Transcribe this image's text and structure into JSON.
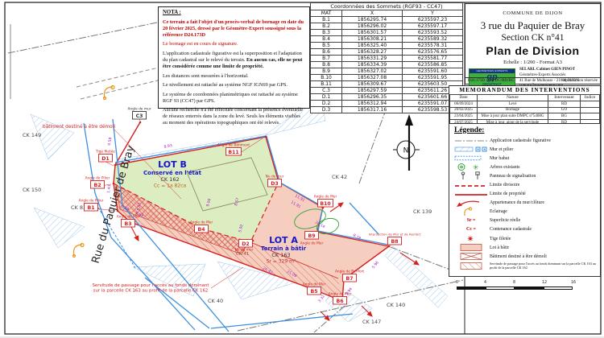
{
  "nota": {
    "title": "NOTA :",
    "p1": "Ce terrain a fait l'objet d'un procès-verbal de bornage en date du 20 février 2025, dressé par le Géomètre-Expert soussigné sous la référence D24.173D",
    "p2": "Le bornage est en cours de signature.",
    "p3a": "L'application cadastrale figurative est la superposition et l'adaptation du plan cadastral sur le relevé du terrain. ",
    "p3b": "En aucun cas, elle ne peut être considérée comme une limite de propriété.",
    "p4": "Les distances sont mesurées à l'horizontal.",
    "p5": "Le nivellement est rattaché au système NGF IGN69 par GPS.",
    "p6": "Le système de coordonnées planimétriques est rattaché au système RGF 93 (CC47) par GPS.",
    "p7": "Aucune recherche n'a été effectuée concernant la présence éventuelle de réseaux enterrés dans la zone du levé. Seuls les éléments visibles au moment des opérations topographiques ont été relevés."
  },
  "coords": {
    "title": "Coordonnées des Sommets (RGF93 - CC47)",
    "columns": [
      "MAT",
      "X",
      "Y"
    ],
    "rows": [
      {
        "mat": "B.1",
        "x": "1856295.74",
        "y": "6235597.23"
      },
      {
        "mat": "B.2",
        "x": "1856296.02",
        "y": "6235597.17"
      },
      {
        "mat": "B.3",
        "x": "1856301.57",
        "y": "6235593.52"
      },
      {
        "mat": "B.4",
        "x": "1856308.21",
        "y": "6235589.32"
      },
      {
        "mat": "B.5",
        "x": "1856325.40",
        "y": "6235578.31"
      },
      {
        "mat": "B.6",
        "x": "1856328.27",
        "y": "6235576.65"
      },
      {
        "mat": "B.7",
        "x": "1856331.29",
        "y": "6235581.77"
      },
      {
        "mat": "B.8",
        "x": "1856334.39",
        "y": "6235586.85"
      },
      {
        "mat": "B.9",
        "x": "1856327.02",
        "y": "6235591.60"
      },
      {
        "mat": "B.10",
        "x": "1856327.08",
        "y": "6235591.95"
      },
      {
        "mat": "B.11",
        "x": "1856309.67",
        "y": "6235603.50"
      },
      {
        "mat": "C.3",
        "x": "1856297.59",
        "y": "6235611.26"
      },
      {
        "mat": "D.1",
        "x": "1856296.35",
        "y": "6235601.66"
      },
      {
        "mat": "D.2",
        "x": "1856312.94",
        "y": "6235591.07"
      },
      {
        "mat": "D.3",
        "x": "1856317.16",
        "y": "6235598.53"
      }
    ]
  },
  "title_block": {
    "commune": "COMMUNE DE DIJON",
    "address": "3 rue du Paquier de Bray",
    "section": "Section CK n°41",
    "title": "Plan de Division",
    "scale": "Echelle : 1/200 - Format A3",
    "logo_top": "GEOMETRES EXPERTS",
    "logo_gp": "gp",
    "logo_sub": "GIEN/PINOT",
    "firm_name": "SELARL Cabinet GIEN PINOT",
    "firm_line2": "Géomètres-Experts Associés",
    "firm_line3": "41 Rue de Mulhouse - 21000  DIJON",
    "firm_line4": "contact@gp-geometre.com",
    "ref": "D24.173D - GO/DC/RD/BG",
    "reproduction": "reproduction réservée"
  },
  "memorandum": {
    "title": "MEMORANDUM  DES  INTERVENTIONS",
    "columns": [
      "Date",
      "Nature",
      "Intervenant",
      "Indice"
    ],
    "rows": [
      {
        "date": "06/09/2024",
        "nature": "Levé",
        "intervenant": "RD",
        "indice": ""
      },
      {
        "date": "20/02/2025",
        "nature": "Bornage",
        "intervenant": "GO",
        "indice": ""
      },
      {
        "date": "23/04/2025",
        "nature": "Mise à jour plan suite DMPC n°5408G",
        "intervenant": "BG",
        "indice": ""
      },
      {
        "date": "24/07/2025",
        "nature": "Mise à jour, ajout de la servitude",
        "intervenant": "RD",
        "indice": ""
      }
    ]
  },
  "legend": {
    "title": "Légende:",
    "items": [
      {
        "symbol": "cadastral-line",
        "label": "Application cadastrale figurative"
      },
      {
        "symbol": "wall-pillar",
        "label": "Mur et pilier"
      },
      {
        "symbol": "low-wall",
        "label": "Mur bahut"
      },
      {
        "symbol": "trees",
        "label": "Arbres existants"
      },
      {
        "symbol": "sign-panel",
        "label": "Panneau de signalisation"
      },
      {
        "symbol": "divide-line",
        "label": "Limite divisoire"
      },
      {
        "symbol": "property-line",
        "label": "Limite de propriété"
      },
      {
        "symbol": "ownership-arrow",
        "label": "Appartenance du mur/clôture"
      },
      {
        "symbol": "lighting",
        "label": "Eclairage"
      },
      {
        "symbol": "sr",
        "prefix": "Sr =",
        "label": "Superficie réelle"
      },
      {
        "symbol": "cc",
        "prefix": "Cc =",
        "label": "Contenance cadastrale"
      },
      {
        "symbol": "threaded-rod",
        "label": "Tige filetée"
      },
      {
        "symbol": "building-lot",
        "label": "Lot à bâtir"
      },
      {
        "symbol": "demolish",
        "label": "Bâtiment destiné à être démoli"
      },
      {
        "symbol": "easement",
        "label": "Servitude de passage pour l'accès au fonds dominant sur la parcelle CK 163 au profit de la parcelle CK 162"
      }
    ]
  },
  "scalebar": {
    "labels": [
      "0",
      "4",
      "8",
      "12",
      "16"
    ]
  },
  "map": {
    "street": "Rue du Paquier de Bray",
    "north_label": "N",
    "parcels": [
      "CK 149",
      "CK 150",
      "CK 83",
      "CK 42",
      "CK 139",
      "CK 140",
      "CK 147",
      "CK 40",
      "CK 41"
    ],
    "lot_b": {
      "name": "LOT B",
      "status": "Conservé en l'état",
      "parcel": "CK 162",
      "area": "Cc = 1a 82ca"
    },
    "lot_a": {
      "name": "LOT A",
      "status": "Terrain à bâtir",
      "parcel": "CK 163",
      "area": "Sr = 329 m²"
    },
    "demolish_note": "bâtiment destiné à être démoli",
    "servitude_note_1": "Servitude de passage pour l'accès au fonds dominant",
    "servitude_note_2": "sur la parcelle CK 163 au profit de la parcelle CK 162",
    "points": [
      {
        "id": "C3",
        "desc": "Angle de mur"
      },
      {
        "id": "D1",
        "desc": "Tige filetée"
      },
      {
        "id": "B2",
        "desc": "Angle de Pilier"
      },
      {
        "id": "B1",
        "desc": "Angle de Pilier"
      },
      {
        "id": "B3",
        "desc": "Angle de Mur"
      },
      {
        "id": "B11",
        "desc": "Angle de Bâtiment"
      },
      {
        "id": "D3",
        "desc": "Nu de mur"
      },
      {
        "id": "B4",
        "desc": "Angle de Mur"
      },
      {
        "id": "B10",
        "desc": "Angle de Mur"
      },
      {
        "id": "B9",
        "desc": "Angle de Mur"
      },
      {
        "id": "B8",
        "desc": "Intersection de Mur et de Renfort"
      },
      {
        "id": "B7",
        "desc": "Angle de Renfort"
      },
      {
        "id": "B5",
        "desc": "Angle de Mur"
      },
      {
        "id": "B6",
        "desc": "Angle de Mur"
      },
      {
        "id": "D2",
        "desc": "Nu de mur"
      }
    ],
    "measurements": [
      "9.58",
      "1.43",
      "0.29",
      "8.69",
      "9.04",
      "8.57",
      "5.92",
      "11.91",
      "11.91",
      "26.14",
      "8.78",
      "21.09",
      "26.42",
      "5.96",
      "5.94",
      "3.32",
      "8.93",
      "5.57"
    ],
    "colors": {
      "property_red": "#d42020",
      "wall_blue": "#3d8fe0",
      "lot_b_green": "#ddedc2",
      "lot_a_pink": "#f6cebf",
      "dimension_purple": "#a020c0",
      "lot_text_blue": "#1515cc"
    }
  }
}
